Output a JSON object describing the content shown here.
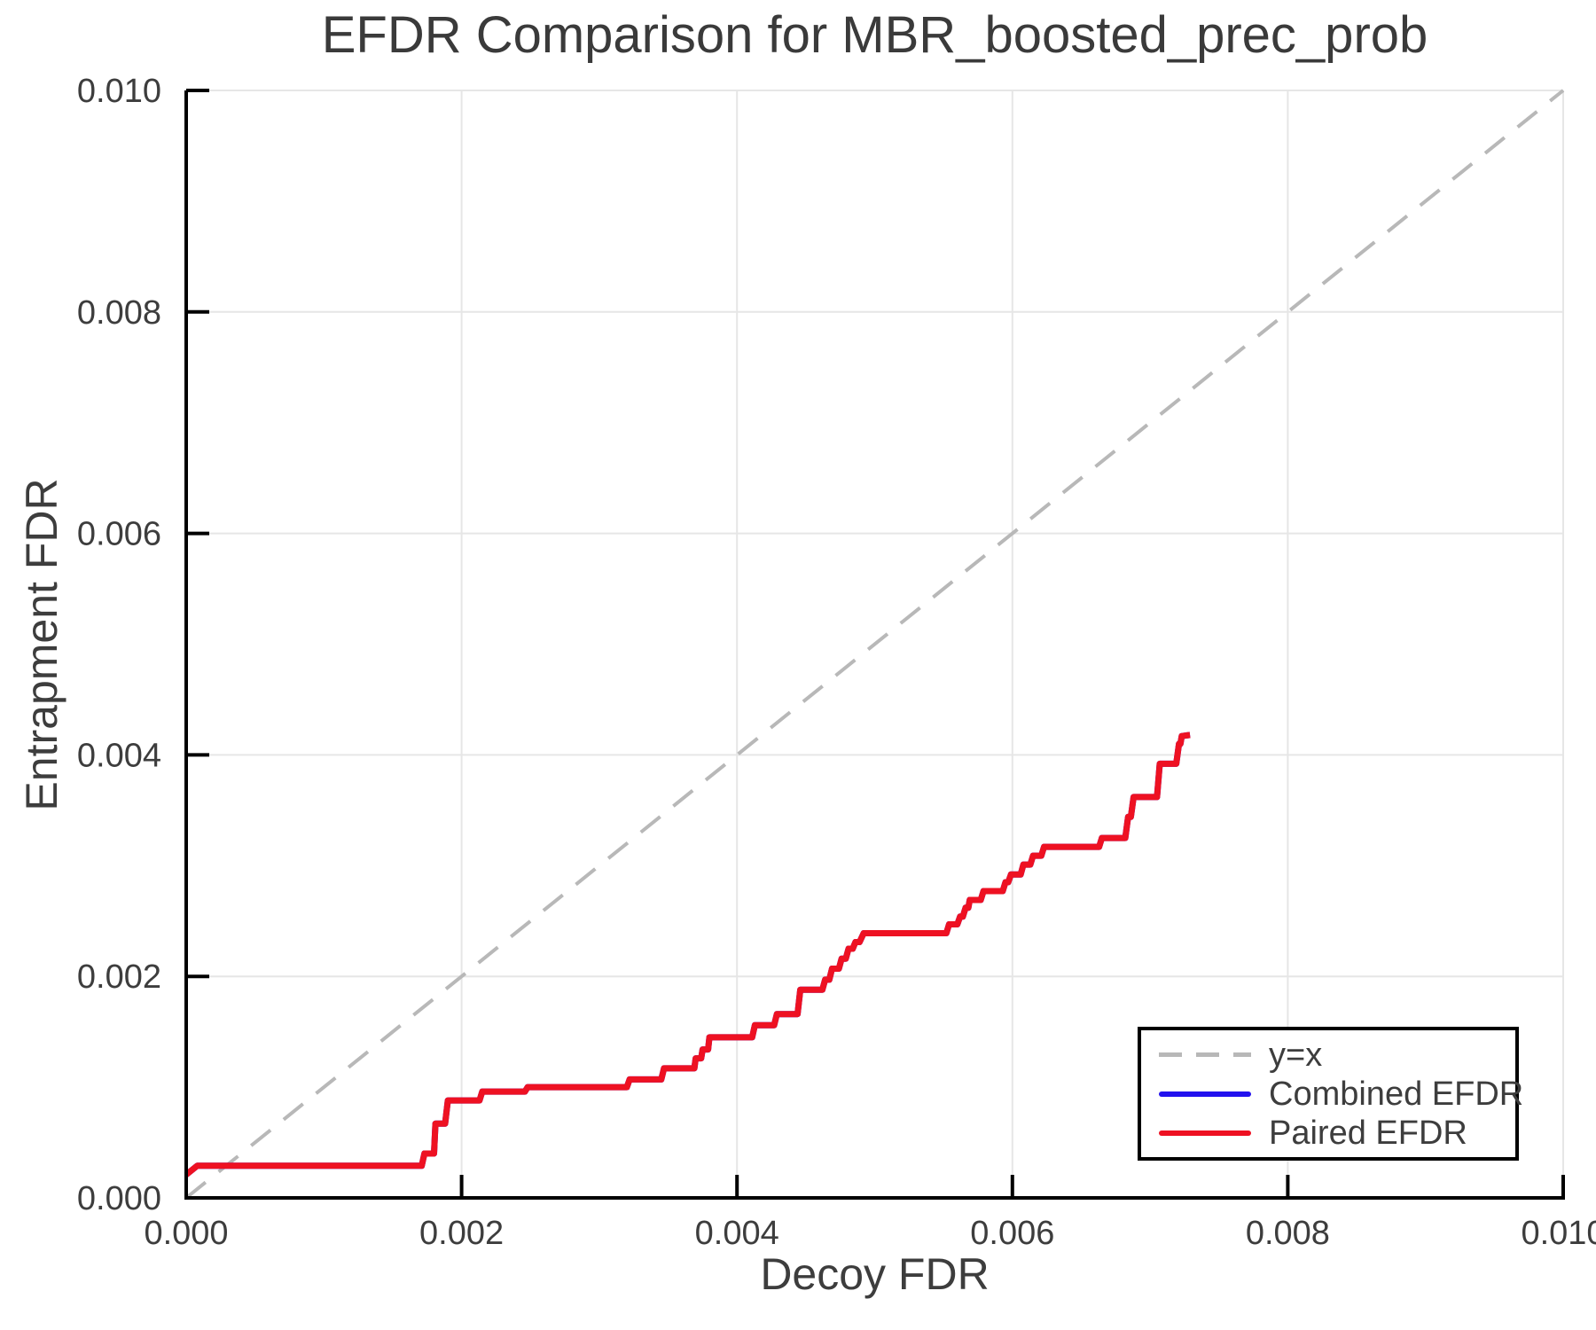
{
  "colors": {
    "background": "#ffffff",
    "text": "#3d3d3d",
    "spine": "#000000",
    "gridline": "#e6e6e6",
    "identity_line": "#b8b8b8",
    "combined_efdr": "#2211ee",
    "paired_efdr": "#ee1122"
  },
  "chart_data": {
    "type": "line",
    "title": "EFDR Comparison for MBR_boosted_prec_prob",
    "xlabel": "Decoy FDR",
    "ylabel": "Entrapment FDR",
    "xlim": [
      0.0,
      0.01
    ],
    "ylim": [
      0.0,
      0.01
    ],
    "grid": true,
    "xticks": {
      "values": [
        0.0,
        0.002,
        0.004,
        0.006,
        0.008,
        0.01
      ],
      "labels": [
        "0.000",
        "0.002",
        "0.004",
        "0.006",
        "0.008",
        "0.010"
      ]
    },
    "yticks": {
      "values": [
        0.0,
        0.002,
        0.004,
        0.006,
        0.008,
        0.01
      ],
      "labels": [
        "0.000",
        "0.002",
        "0.004",
        "0.006",
        "0.008",
        "0.010"
      ]
    },
    "legend": {
      "position": "bottom-right"
    },
    "series": [
      {
        "name": "y=x",
        "style": "dashed",
        "color": "#b8b8b8",
        "points": [
          [
            0.0,
            0.0
          ],
          [
            0.01,
            0.01
          ]
        ]
      },
      {
        "name": "Combined EFDR",
        "style": "solid",
        "color": "#2211ee",
        "points": [
          [
            0.0,
            0.00021
          ],
          [
            8e-05,
            0.00029
          ],
          [
            0.00171,
            0.00029
          ],
          [
            0.00173,
            0.0004
          ],
          [
            0.0018,
            0.0004
          ],
          [
            0.00181,
            0.00067
          ],
          [
            0.00188,
            0.00067
          ],
          [
            0.0019,
            0.00088
          ],
          [
            0.00213,
            0.00088
          ],
          [
            0.00215,
            0.00096
          ],
          [
            0.00246,
            0.00096
          ],
          [
            0.00248,
            0.001
          ],
          [
            0.0032,
            0.001
          ],
          [
            0.00322,
            0.00107
          ],
          [
            0.00345,
            0.00107
          ],
          [
            0.00347,
            0.00117
          ],
          [
            0.00369,
            0.00117
          ],
          [
            0.0037,
            0.00126
          ],
          [
            0.00374,
            0.00126
          ],
          [
            0.00375,
            0.00134
          ],
          [
            0.00379,
            0.00134
          ],
          [
            0.0038,
            0.00145
          ],
          [
            0.00411,
            0.00145
          ],
          [
            0.00413,
            0.00156
          ],
          [
            0.00427,
            0.00156
          ],
          [
            0.00429,
            0.00166
          ],
          [
            0.00444,
            0.00166
          ],
          [
            0.00446,
            0.00188
          ],
          [
            0.00462,
            0.00188
          ],
          [
            0.00464,
            0.00197
          ],
          [
            0.00467,
            0.00197
          ],
          [
            0.00469,
            0.00207
          ],
          [
            0.00474,
            0.00207
          ],
          [
            0.00476,
            0.00216
          ],
          [
            0.00479,
            0.00216
          ],
          [
            0.00481,
            0.00225
          ],
          [
            0.00484,
            0.00225
          ],
          [
            0.00486,
            0.00231
          ],
          [
            0.00489,
            0.00231
          ],
          [
            0.00492,
            0.00239
          ],
          [
            0.00552,
            0.00239
          ],
          [
            0.00554,
            0.00247
          ],
          [
            0.0056,
            0.00247
          ],
          [
            0.00562,
            0.00254
          ],
          [
            0.00564,
            0.00254
          ],
          [
            0.00566,
            0.00262
          ],
          [
            0.00568,
            0.00262
          ],
          [
            0.00569,
            0.00269
          ],
          [
            0.00577,
            0.00269
          ],
          [
            0.00579,
            0.00277
          ],
          [
            0.00593,
            0.00277
          ],
          [
            0.00595,
            0.00285
          ],
          [
            0.00597,
            0.00285
          ],
          [
            0.00599,
            0.00292
          ],
          [
            0.00606,
            0.00292
          ],
          [
            0.00608,
            0.00301
          ],
          [
            0.00613,
            0.00301
          ],
          [
            0.00615,
            0.00309
          ],
          [
            0.00621,
            0.00309
          ],
          [
            0.00623,
            0.00317
          ],
          [
            0.00663,
            0.00317
          ],
          [
            0.00665,
            0.00325
          ],
          [
            0.00682,
            0.00325
          ],
          [
            0.00684,
            0.00344
          ],
          [
            0.00686,
            0.00344
          ],
          [
            0.00688,
            0.00362
          ],
          [
            0.00705,
            0.00362
          ],
          [
            0.00707,
            0.00392
          ],
          [
            0.00719,
            0.00392
          ],
          [
            0.00721,
            0.0041
          ],
          [
            0.00722,
            0.0041
          ],
          [
            0.00723,
            0.00417
          ],
          [
            0.00729,
            0.00418
          ]
        ]
      },
      {
        "name": "Paired EFDR",
        "style": "solid",
        "color": "#ee1122",
        "points": [
          [
            0.0,
            0.00021
          ],
          [
            8e-05,
            0.00029
          ],
          [
            0.00171,
            0.00029
          ],
          [
            0.00173,
            0.0004
          ],
          [
            0.0018,
            0.0004
          ],
          [
            0.00181,
            0.00067
          ],
          [
            0.00188,
            0.00067
          ],
          [
            0.0019,
            0.00088
          ],
          [
            0.00213,
            0.00088
          ],
          [
            0.00215,
            0.00096
          ],
          [
            0.00246,
            0.00096
          ],
          [
            0.00248,
            0.001
          ],
          [
            0.0032,
            0.001
          ],
          [
            0.00322,
            0.00107
          ],
          [
            0.00345,
            0.00107
          ],
          [
            0.00347,
            0.00117
          ],
          [
            0.00369,
            0.00117
          ],
          [
            0.0037,
            0.00126
          ],
          [
            0.00374,
            0.00126
          ],
          [
            0.00375,
            0.00134
          ],
          [
            0.00379,
            0.00134
          ],
          [
            0.0038,
            0.00145
          ],
          [
            0.00411,
            0.00145
          ],
          [
            0.00413,
            0.00156
          ],
          [
            0.00427,
            0.00156
          ],
          [
            0.00429,
            0.00166
          ],
          [
            0.00444,
            0.00166
          ],
          [
            0.00446,
            0.00188
          ],
          [
            0.00462,
            0.00188
          ],
          [
            0.00464,
            0.00197
          ],
          [
            0.00467,
            0.00197
          ],
          [
            0.00469,
            0.00207
          ],
          [
            0.00474,
            0.00207
          ],
          [
            0.00476,
            0.00216
          ],
          [
            0.00479,
            0.00216
          ],
          [
            0.00481,
            0.00225
          ],
          [
            0.00484,
            0.00225
          ],
          [
            0.00486,
            0.00231
          ],
          [
            0.00489,
            0.00231
          ],
          [
            0.00492,
            0.00239
          ],
          [
            0.00552,
            0.00239
          ],
          [
            0.00554,
            0.00247
          ],
          [
            0.0056,
            0.00247
          ],
          [
            0.00562,
            0.00254
          ],
          [
            0.00564,
            0.00254
          ],
          [
            0.00566,
            0.00262
          ],
          [
            0.00568,
            0.00262
          ],
          [
            0.00569,
            0.00269
          ],
          [
            0.00577,
            0.00269
          ],
          [
            0.00579,
            0.00277
          ],
          [
            0.00593,
            0.00277
          ],
          [
            0.00595,
            0.00285
          ],
          [
            0.00597,
            0.00285
          ],
          [
            0.00599,
            0.00292
          ],
          [
            0.00606,
            0.00292
          ],
          [
            0.00608,
            0.00301
          ],
          [
            0.00613,
            0.00301
          ],
          [
            0.00615,
            0.00309
          ],
          [
            0.00621,
            0.00309
          ],
          [
            0.00623,
            0.00317
          ],
          [
            0.00663,
            0.00317
          ],
          [
            0.00665,
            0.00325
          ],
          [
            0.00682,
            0.00325
          ],
          [
            0.00684,
            0.00344
          ],
          [
            0.00686,
            0.00344
          ],
          [
            0.00688,
            0.00362
          ],
          [
            0.00705,
            0.00362
          ],
          [
            0.00707,
            0.00392
          ],
          [
            0.00719,
            0.00392
          ],
          [
            0.00721,
            0.0041
          ],
          [
            0.00722,
            0.0041
          ],
          [
            0.00723,
            0.00417
          ],
          [
            0.00729,
            0.00418
          ]
        ]
      }
    ]
  }
}
